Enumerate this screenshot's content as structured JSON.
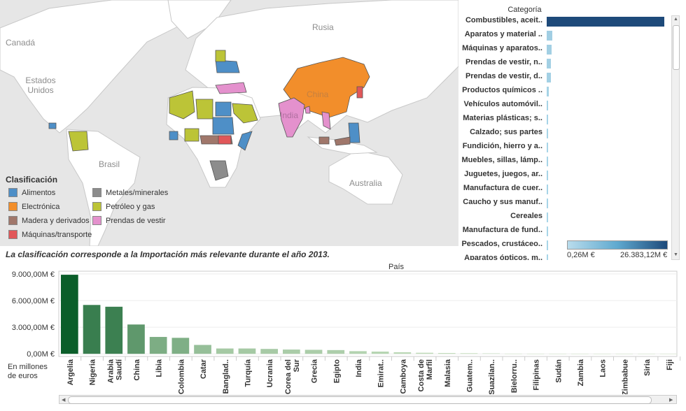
{
  "map": {
    "labels": {
      "rusia": "Rusia",
      "canada": "Canadá",
      "usa": "Estados Unidos",
      "brasil": "Brasil",
      "australia": "Australia",
      "china": "China",
      "india": "India"
    }
  },
  "legend": {
    "title": "Clasificación",
    "items": [
      {
        "label": "Alimentos",
        "color": "#4e8fc7"
      },
      {
        "label": "Electrónica",
        "color": "#f28e2b"
      },
      {
        "label": "Madera y derivados",
        "color": "#a0776b"
      },
      {
        "label": "Máquinas/transporte",
        "color": "#e15759"
      },
      {
        "label": "Metales/minerales",
        "color": "#8c8c8c"
      },
      {
        "label": "Petróleo y gas",
        "color": "#bcc437"
      },
      {
        "label": "Prendas de vestir",
        "color": "#e491cd"
      }
    ]
  },
  "note": "La clasificación corresponde a la Importación más relevante durante el año 2013.",
  "categories": {
    "title": "Categoría",
    "items": [
      {
        "label": "Combustibles, aceit..",
        "value": 26383.12
      },
      {
        "label": "Aparatos y material ..",
        "value": 1300
      },
      {
        "label": "Máquinas y aparatos..",
        "value": 1100
      },
      {
        "label": "Prendas de vestir, n..",
        "value": 960
      },
      {
        "label": "Prendas de vestir, d..",
        "value": 930
      },
      {
        "label": "Productos químicos ..",
        "value": 420
      },
      {
        "label": "Vehículos automóvil..",
        "value": 360
      },
      {
        "label": "Materias plásticas; s..",
        "value": 310
      },
      {
        "label": "Calzado; sus partes",
        "value": 250
      },
      {
        "label": "Fundición, hierro y a..",
        "value": 220
      },
      {
        "label": "Muebles, sillas, lámp..",
        "value": 160
      },
      {
        "label": "Juguetes, juegos, ar..",
        "value": 140
      },
      {
        "label": "Manufactura de cuer..",
        "value": 120
      },
      {
        "label": "Caucho y sus manuf..",
        "value": 100
      },
      {
        "label": "Cereales",
        "value": 80
      },
      {
        "label": "Manufactura de fund..",
        "value": 70
      },
      {
        "label": "Pescados, crustáceo..",
        "value": 60
      },
      {
        "label": "Aparatos ópticos, m..",
        "value": 50
      }
    ],
    "colorscale": {
      "min_label": "0,26M €",
      "max_label": "26.383,12M €",
      "min_color": "#b9dcec",
      "max_color": "#1e4a7a"
    }
  },
  "chart_data": {
    "type": "bar",
    "title": "País",
    "ylabel": "En millones de euros",
    "ylim": [
      -300,
      9300
    ],
    "yticks": [
      {
        "value": 0,
        "label": "0,00M €"
      },
      {
        "value": 3000,
        "label": "3.000,00M €"
      },
      {
        "value": 6000,
        "label": "6.000,00M €"
      },
      {
        "value": 9000,
        "label": "9.000,00M €"
      }
    ],
    "categories": [
      "Argelia",
      "Nigeria",
      "Arabia Saudí",
      "China",
      "Libia",
      "Colombia",
      "Catar",
      "Banglad..",
      "Turquía",
      "Ucrania",
      "Corea del Sur",
      "Grecia",
      "Egipto",
      "India",
      "Emirat..",
      "Camboya",
      "Costa de Marfil",
      "Malasia",
      "Guatem..",
      "Suazilan..",
      "Bielorru..",
      "Filipinas",
      "Sudán",
      "Zambia",
      "Laos",
      "Zimbabue",
      "Siria",
      "Fiji"
    ],
    "values": [
      8900,
      5500,
      5300,
      3300,
      1900,
      1800,
      1000,
      600,
      600,
      550,
      480,
      450,
      420,
      300,
      250,
      180,
      120,
      90,
      70,
      50,
      20,
      15,
      10,
      10,
      8,
      6,
      5,
      3
    ],
    "colors": {
      "high": "#0b5e2a",
      "low": "#d2e8c8"
    }
  }
}
